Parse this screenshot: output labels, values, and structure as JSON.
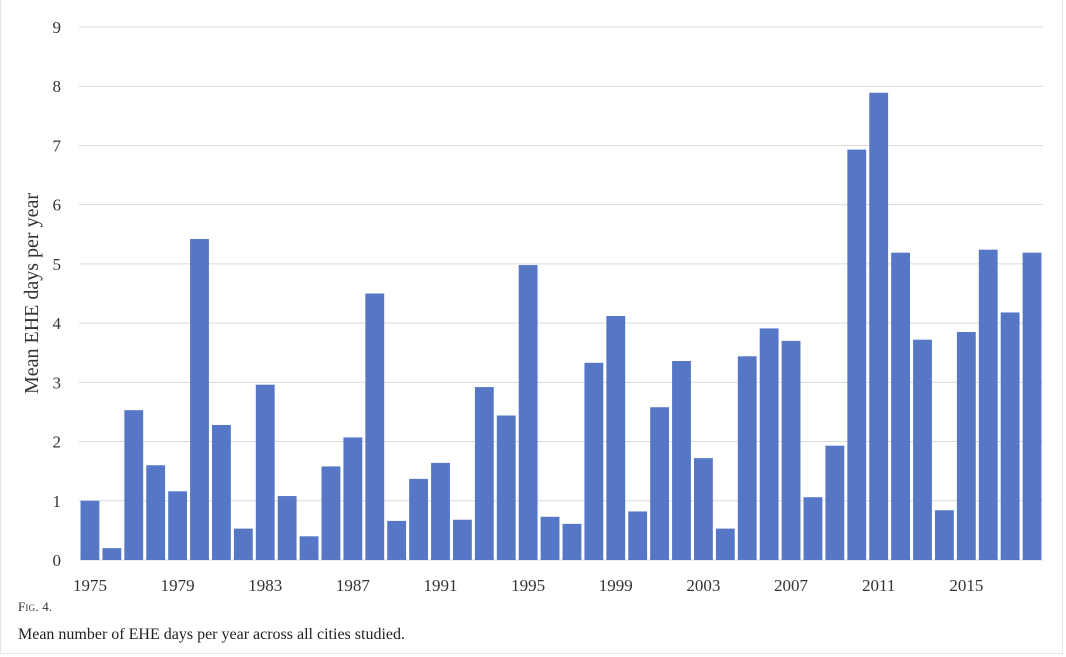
{
  "figure": {
    "label": "Fig. 4.",
    "caption": "Mean number of EHE days per year across all cities studied."
  },
  "chart_data": {
    "type": "bar",
    "ylabel": "Mean EHE days per year",
    "xlabel": "",
    "ylim": [
      0,
      9
    ],
    "yticks": [
      0,
      1,
      2,
      3,
      4,
      5,
      6,
      7,
      8,
      9
    ],
    "grid": true,
    "bar_color": "#5677c6",
    "grid_color": "#d9d9d9",
    "categories": [
      1975,
      1976,
      1977,
      1978,
      1979,
      1980,
      1981,
      1982,
      1983,
      1984,
      1985,
      1986,
      1987,
      1988,
      1989,
      1990,
      1991,
      1992,
      1993,
      1994,
      1995,
      1996,
      1997,
      1998,
      1999,
      2000,
      2001,
      2002,
      2003,
      2004,
      2005,
      2006,
      2007,
      2008,
      2009,
      2010,
      2011,
      2012,
      2013,
      2014,
      2015,
      2016,
      2017,
      2018
    ],
    "xtick_labels": [
      "1975",
      "1979",
      "1983",
      "1987",
      "1991",
      "1995",
      "1999",
      "2003",
      "2007",
      "2011",
      "2015"
    ],
    "values": [
      1.0,
      0.2,
      2.53,
      1.6,
      1.16,
      5.42,
      2.28,
      0.53,
      2.96,
      1.08,
      0.4,
      1.58,
      2.07,
      4.5,
      0.66,
      1.37,
      1.64,
      0.68,
      2.92,
      2.44,
      4.98,
      0.73,
      0.61,
      3.33,
      4.12,
      0.82,
      2.58,
      3.36,
      1.72,
      0.53,
      3.44,
      3.91,
      3.7,
      1.06,
      1.93,
      6.93,
      7.89,
      5.19,
      3.72,
      0.84,
      3.85,
      5.24,
      4.18,
      5.19
    ]
  }
}
